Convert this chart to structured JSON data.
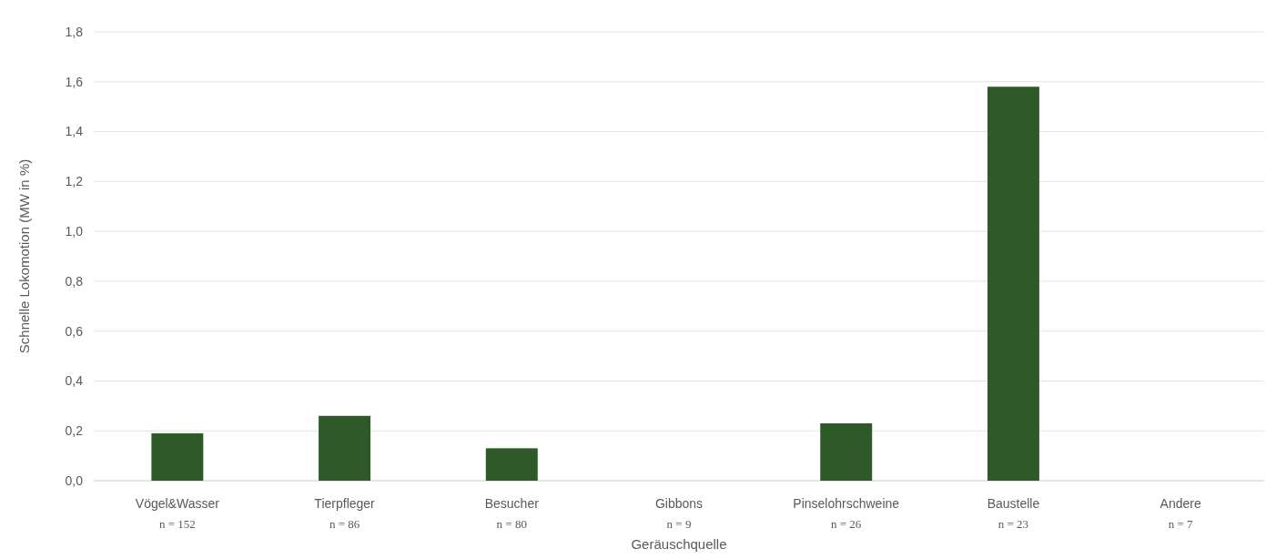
{
  "chart_data": {
    "type": "bar",
    "xlabel": "Geräuschquelle",
    "ylabel": "Schnelle Lokomotion (MW in %)",
    "categories": [
      "Vögel&Wasser\nn = 152",
      "Tierpfleger\nn = 86",
      "Besucher\nn = 80",
      "Gibbons\nn = 9",
      "Pinselohrschweine\nn = 26",
      "Baustelle\nn = 23",
      "Andere\nn = 7"
    ],
    "values": [
      0.19,
      0.26,
      0.13,
      0,
      0.23,
      1.58,
      0
    ],
    "color": "#2d5a27",
    "ylim": [
      0,
      1.8
    ],
    "yticks": [
      {
        "value": 0,
        "label": "0,0"
      },
      {
        "value": 0.2,
        "label": "0,2"
      },
      {
        "value": 0.4,
        "label": "0,4"
      },
      {
        "value": 0.6,
        "label": "0,6"
      },
      {
        "value": 0.8,
        "label": "0,8"
      },
      {
        "value": 1,
        "label": "1,0"
      },
      {
        "value": 1.2,
        "label": "1,2"
      },
      {
        "value": 1.4,
        "label": "1,4"
      },
      {
        "value": 1.6,
        "label": "1,6"
      },
      {
        "value": 1.8,
        "label": "1,8"
      }
    ],
    "grid": "y"
  }
}
